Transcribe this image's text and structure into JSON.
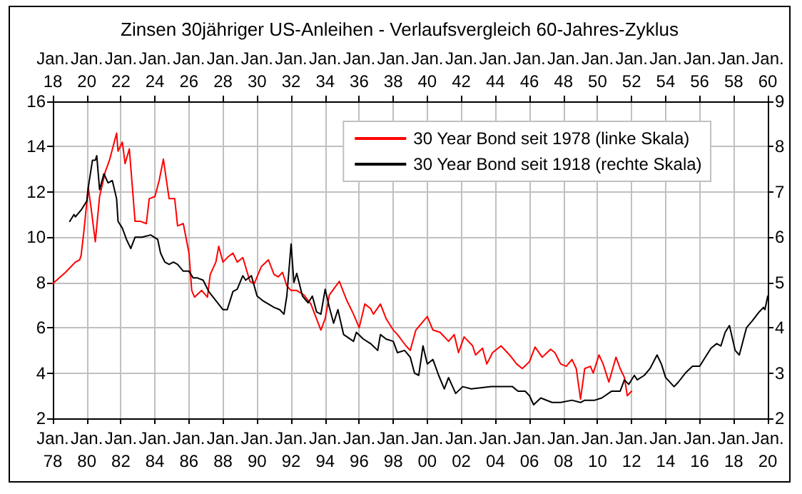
{
  "chart_data": {
    "type": "line",
    "title": "Zinsen 30jähriger US-Anleihen - Verlaufsvergleich 60-Jahres-Zyklus",
    "xlim": [
      "1978-01",
      "2020-01"
    ],
    "xticks": [
      {
        "value": "1978-01",
        "label": "Jan. 78"
      },
      {
        "value": "1980-01",
        "label": "Jan. 80"
      },
      {
        "value": "1982-01",
        "label": "Jan. 82"
      },
      {
        "value": "1984-01",
        "label": "Jan. 84"
      },
      {
        "value": "1986-01",
        "label": "Jan. 86"
      },
      {
        "value": "1988-01",
        "label": "Jan. 88"
      },
      {
        "value": "1990-01",
        "label": "Jan. 90"
      },
      {
        "value": "1992-01",
        "label": "Jan. 92"
      },
      {
        "value": "1994-01",
        "label": "Jan. 94"
      },
      {
        "value": "1996-01",
        "label": "Jan. 96"
      },
      {
        "value": "1998-01",
        "label": "Jan. 98"
      },
      {
        "value": "2000-01",
        "label": "Jan. 00"
      },
      {
        "value": "2002-01",
        "label": "Jan. 02"
      },
      {
        "value": "2004-01",
        "label": "Jan. 04"
      },
      {
        "value": "2006-01",
        "label": "Jan. 06"
      },
      {
        "value": "2008-01",
        "label": "Jan. 08"
      },
      {
        "value": "2010-01",
        "label": "Jan. 10"
      },
      {
        "value": "2012-01",
        "label": "Jan. 12"
      },
      {
        "value": "2014-01",
        "label": "Jan. 14"
      },
      {
        "value": "2016-01",
        "label": "Jan. 16"
      },
      {
        "value": "2018-01",
        "label": "Jan. 18"
      },
      {
        "value": "2020-01",
        "label": "Jan. 20"
      }
    ],
    "x2lim": [
      "1918-01",
      "1960-01"
    ],
    "x2ticks": [
      {
        "value": "1918-01",
        "label": "Jan. 18"
      },
      {
        "value": "1920-01",
        "label": "Jan. 20"
      },
      {
        "value": "1922-01",
        "label": "Jan. 22"
      },
      {
        "value": "1924-01",
        "label": "Jan. 24"
      },
      {
        "value": "1926-01",
        "label": "Jan. 26"
      },
      {
        "value": "1928-01",
        "label": "Jan. 28"
      },
      {
        "value": "1930-01",
        "label": "Jan. 30"
      },
      {
        "value": "1932-01",
        "label": "Jan. 32"
      },
      {
        "value": "1934-01",
        "label": "Jan. 34"
      },
      {
        "value": "1936-01",
        "label": "Jan. 36"
      },
      {
        "value": "1938-01",
        "label": "Jan. 38"
      },
      {
        "value": "1940-01",
        "label": "Jan. 40"
      },
      {
        "value": "1942-01",
        "label": "Jan. 42"
      },
      {
        "value": "1944-01",
        "label": "Jan. 44"
      },
      {
        "value": "1946-01",
        "label": "Jan. 46"
      },
      {
        "value": "1948-01",
        "label": "Jan. 48"
      },
      {
        "value": "1950-01",
        "label": "Jan. 50"
      },
      {
        "value": "1952-01",
        "label": "Jan. 52"
      },
      {
        "value": "1954-01",
        "label": "Jan. 54"
      },
      {
        "value": "1956-01",
        "label": "Jan. 56"
      },
      {
        "value": "1958-01",
        "label": "Jan. 58"
      },
      {
        "value": "1960-01",
        "label": "Jan. 60"
      }
    ],
    "ylim": [
      2,
      16
    ],
    "yticks": [
      2,
      4,
      6,
      8,
      10,
      12,
      14,
      16
    ],
    "y2lim": [
      2,
      9
    ],
    "y2ticks": [
      2,
      3,
      4,
      5,
      6,
      7,
      8,
      9
    ],
    "grid": true,
    "legend": "top right",
    "marker": "none",
    "line_style": "solid",
    "series": [
      {
        "name": "30 Year Bond seit 1978 (linke Skala)",
        "color": "#ff0000",
        "x": [
          "1978-01",
          "1978-10",
          "1979-05",
          "1979-08",
          "1979-09",
          "1979-11",
          "1980-02",
          "1980-04",
          "1980-07",
          "1980-10",
          "1981-02",
          "1981-05",
          "1981-10",
          "1981-11",
          "1982-02",
          "1982-04",
          "1982-07",
          "1982-09",
          "1982-11",
          "1983-03",
          "1983-07",
          "1983-09",
          "1984-01",
          "1984-04",
          "1984-07",
          "1984-08",
          "1984-11",
          "1985-03",
          "1985-05",
          "1985-09",
          "1986-01",
          "1986-03",
          "1986-05",
          "1986-10",
          "1987-02",
          "1987-04",
          "1987-08",
          "1987-10",
          "1988-01",
          "1988-04",
          "1988-08",
          "1988-11",
          "1989-03",
          "1989-08",
          "1989-11",
          "1990-04",
          "1990-09",
          "1991-01",
          "1991-04",
          "1991-07",
          "1991-10",
          "1992-01",
          "1992-05",
          "1992-10",
          "1993-03",
          "1993-10",
          "1994-01",
          "1994-04",
          "1994-11",
          "1995-04",
          "1995-09",
          "1996-01",
          "1996-05",
          "1996-09",
          "1996-11",
          "1997-04",
          "1997-08",
          "1998-01",
          "1998-04",
          "1998-10",
          "1999-01",
          "1999-05",
          "2000-01",
          "2000-05",
          "2000-10",
          "2001-04",
          "2001-08",
          "2001-11",
          "2002-03",
          "2002-09",
          "2002-11",
          "2003-04",
          "2003-07",
          "2003-11",
          "2004-05",
          "2004-11",
          "2005-04",
          "2005-08",
          "2006-01",
          "2006-05",
          "2006-10",
          "2007-04",
          "2007-07",
          "2007-11",
          "2008-03",
          "2008-07",
          "2008-10",
          "2009-01",
          "2009-04",
          "2009-08",
          "2009-10",
          "2010-02",
          "2010-05",
          "2010-09",
          "2011-02",
          "2011-05",
          "2011-08",
          "2011-10",
          "2012-01"
        ],
        "values": [
          7.95,
          8.45,
          8.9,
          9.0,
          9.2,
          10.3,
          12.2,
          11.3,
          9.8,
          11.8,
          12.9,
          13.4,
          14.6,
          13.8,
          14.2,
          13.25,
          13.9,
          12.3,
          10.7,
          10.7,
          10.6,
          11.7,
          11.8,
          12.5,
          13.45,
          13.0,
          11.7,
          11.7,
          10.5,
          10.6,
          9.3,
          7.65,
          7.35,
          7.65,
          7.35,
          8.35,
          8.9,
          9.6,
          8.9,
          9.1,
          9.3,
          8.9,
          9.1,
          8.05,
          7.95,
          8.7,
          9.0,
          8.35,
          8.25,
          8.45,
          7.85,
          7.65,
          7.65,
          7.45,
          7.05,
          5.9,
          6.4,
          7.45,
          8.05,
          7.25,
          6.6,
          6.0,
          7.05,
          6.85,
          6.6,
          7.05,
          6.4,
          5.9,
          5.7,
          5.2,
          5.0,
          5.9,
          6.5,
          5.9,
          5.8,
          5.4,
          5.7,
          4.9,
          5.6,
          5.2,
          4.8,
          5.1,
          4.4,
          4.9,
          5.2,
          4.8,
          4.4,
          4.2,
          4.5,
          5.15,
          4.7,
          5.05,
          4.9,
          4.4,
          4.3,
          4.6,
          4.2,
          2.85,
          4.2,
          4.3,
          4.0,
          4.8,
          4.4,
          3.6,
          4.7,
          4.2,
          3.8,
          3.0,
          3.2
        ]
      },
      {
        "name": "30 Year Bond seit 1918 (rechte Skala)",
        "color": "#000000",
        "axis": "y2",
        "x": [
          "1979-01",
          "1979-04",
          "1979-05",
          "1979-09",
          "1980-01",
          "1980-02",
          "1980-05",
          "1980-07",
          "1980-08",
          "1980-10",
          "1981-01",
          "1981-04",
          "1981-07",
          "1981-10",
          "1981-11",
          "1982-02",
          "1982-05",
          "1982-08",
          "1982-11",
          "1983-04",
          "1983-10",
          "1984-03",
          "1984-05",
          "1984-08",
          "1984-11",
          "1985-02",
          "1985-05",
          "1985-09",
          "1986-01",
          "1986-04",
          "1986-07",
          "1986-11",
          "1987-03",
          "1987-08",
          "1988-01",
          "1988-04",
          "1988-08",
          "1988-11",
          "1989-03",
          "1989-05",
          "1989-09",
          "1990-01",
          "1990-05",
          "1991-01",
          "1991-05",
          "1991-08",
          "1991-10",
          "1992-01",
          "1992-03",
          "1992-05",
          "1992-09",
          "1993-01",
          "1993-04",
          "1993-07",
          "1993-10",
          "1994-01",
          "1994-04",
          "1994-07",
          "1994-10",
          "1995-02",
          "1995-09",
          "1995-11",
          "1996-04",
          "1996-09",
          "1997-02",
          "1997-04",
          "1997-08",
          "1998-01",
          "1998-04",
          "1998-09",
          "1999-01",
          "1999-04",
          "1999-07",
          "1999-10",
          "2000-01",
          "2000-05",
          "2000-09",
          "2001-01",
          "2001-04",
          "2001-09",
          "2002-02",
          "2002-08",
          "2003-10",
          "2005-01",
          "2005-05",
          "2005-10",
          "2006-01",
          "2006-04",
          "2006-09",
          "2007-05",
          "2007-11",
          "2008-07",
          "2009-01",
          "2009-04",
          "2009-11",
          "2010-04",
          "2010-11",
          "2011-05",
          "2011-08",
          "2011-11",
          "2012-03",
          "2012-05",
          "2012-10",
          "2013-02",
          "2013-07",
          "2013-10",
          "2014-01",
          "2014-07",
          "2014-10",
          "2015-03",
          "2015-08",
          "2016-01",
          "2016-04",
          "2016-09",
          "2017-01",
          "2017-04",
          "2017-07",
          "2017-10",
          "2018-02",
          "2018-05",
          "2018-10",
          "2019-02",
          "2019-07",
          "2019-10",
          "2019-11",
          "2020-01"
        ],
        "values": [
          6.35,
          6.5,
          6.45,
          6.6,
          6.8,
          7.1,
          7.7,
          7.7,
          7.8,
          7.05,
          7.4,
          7.2,
          7.25,
          6.85,
          6.35,
          6.2,
          5.95,
          5.75,
          6.0,
          6.0,
          6.05,
          5.95,
          5.65,
          5.45,
          5.4,
          5.45,
          5.4,
          5.25,
          5.25,
          5.1,
          5.1,
          5.05,
          4.8,
          4.6,
          4.4,
          4.4,
          4.8,
          4.85,
          5.15,
          5.05,
          5.15,
          4.7,
          4.6,
          4.45,
          4.4,
          4.3,
          4.7,
          5.85,
          5.0,
          5.2,
          4.7,
          4.55,
          4.7,
          4.35,
          4.3,
          4.85,
          4.45,
          4.1,
          4.4,
          3.85,
          3.7,
          3.9,
          3.75,
          3.65,
          3.5,
          3.85,
          3.75,
          3.7,
          3.45,
          3.5,
          3.35,
          3.0,
          2.95,
          3.6,
          3.2,
          3.3,
          2.95,
          2.65,
          2.9,
          2.55,
          2.7,
          2.65,
          2.7,
          2.7,
          2.6,
          2.6,
          2.5,
          2.3,
          2.45,
          2.35,
          2.35,
          2.4,
          2.35,
          2.4,
          2.4,
          2.45,
          2.6,
          2.6,
          2.85,
          2.75,
          2.95,
          2.85,
          2.95,
          3.1,
          3.4,
          3.2,
          2.9,
          2.7,
          2.8,
          3.0,
          3.15,
          3.15,
          3.3,
          3.55,
          3.65,
          3.6,
          3.9,
          4.05,
          3.5,
          3.4,
          4.0,
          4.15,
          4.35,
          4.45,
          4.4,
          4.7
        ]
      }
    ]
  }
}
